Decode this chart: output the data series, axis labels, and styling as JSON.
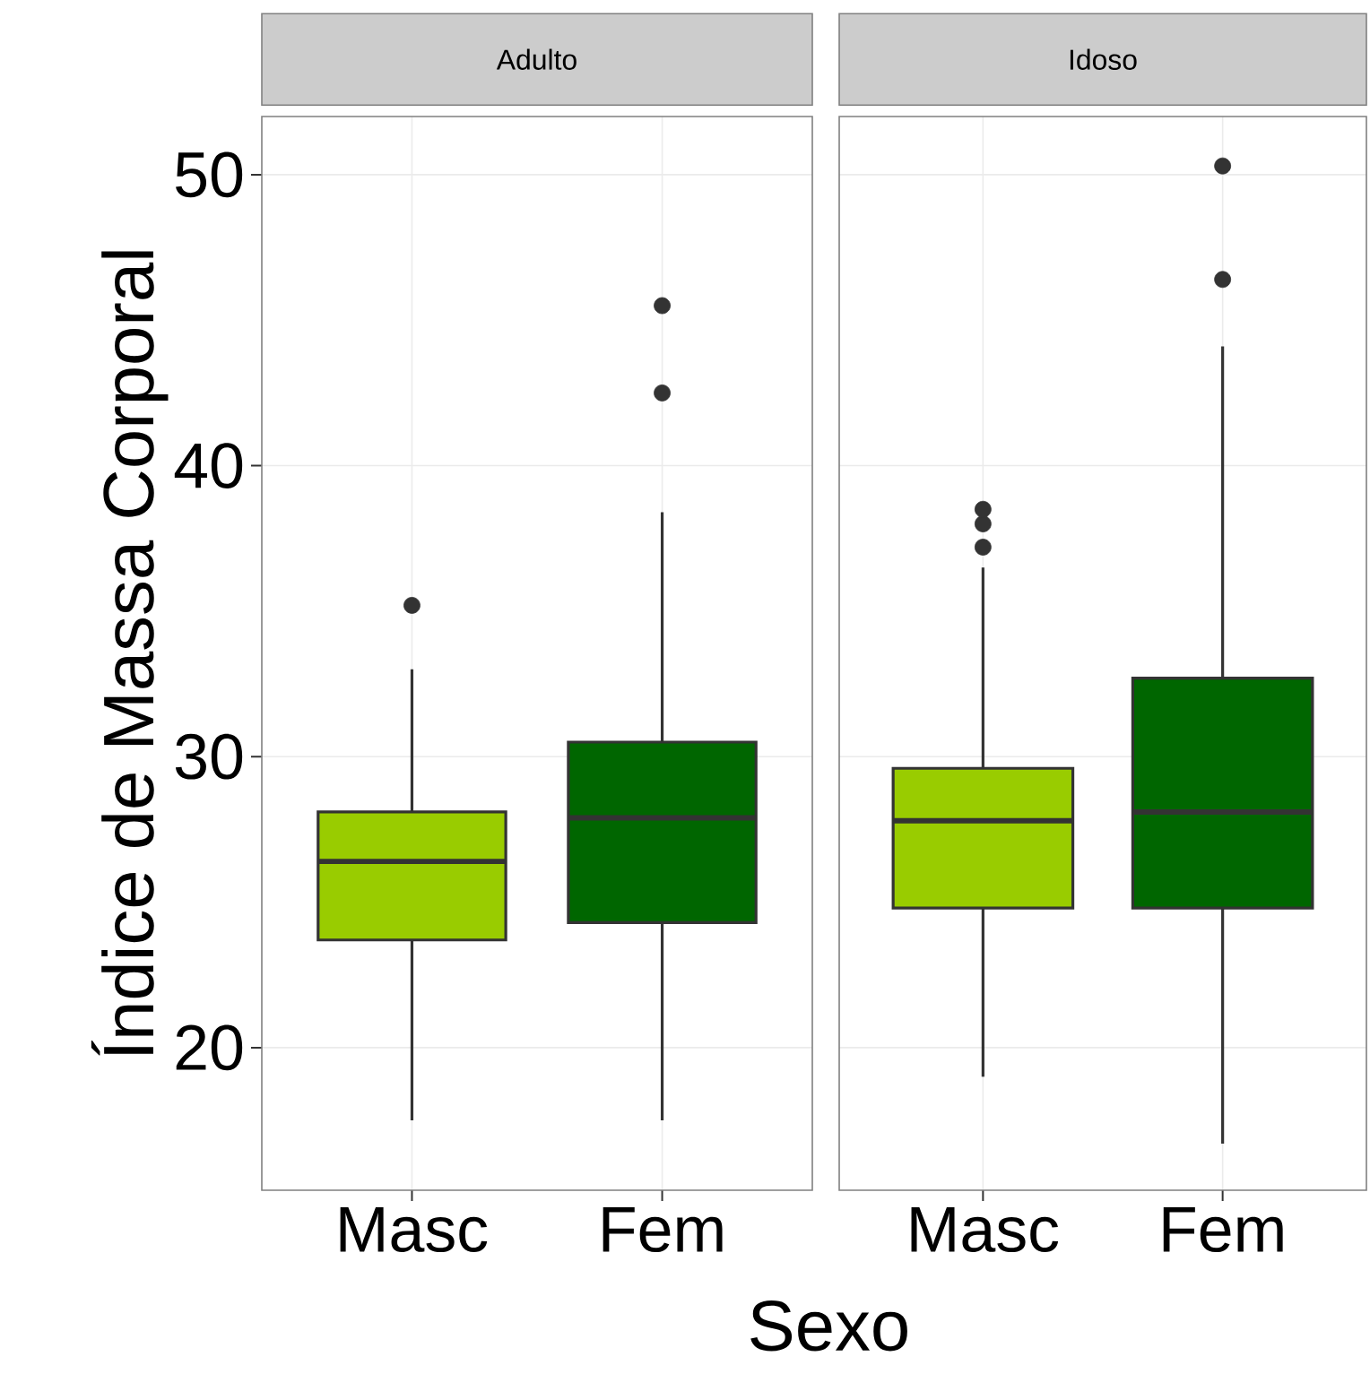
{
  "chart_data": [
    {
      "type": "box",
      "title": "Adulto",
      "ylabel": "Índice de Massa Corporal",
      "xlabel": "Sexo",
      "categories": [
        "Masc",
        "Fem"
      ],
      "colors": [
        "#99cc00",
        "#006600"
      ],
      "boxes": [
        {
          "low": 17.5,
          "q1": 23.7,
          "median": 26.4,
          "q3": 28.1,
          "high": 33.0,
          "outliers": [
            35.2
          ]
        },
        {
          "low": 17.5,
          "q1": 24.3,
          "median": 27.9,
          "q3": 30.5,
          "high": 38.4,
          "outliers": [
            42.5,
            45.5
          ]
        }
      ],
      "ylim": [
        15.1,
        52
      ],
      "yticks": [
        20,
        30,
        40,
        50
      ],
      "grid": true
    },
    {
      "type": "box",
      "title": "Idoso",
      "categories": [
        "Masc",
        "Fem"
      ],
      "colors": [
        "#99cc00",
        "#006600"
      ],
      "boxes": [
        {
          "low": 19.0,
          "q1": 24.8,
          "median": 27.8,
          "q3": 29.6,
          "high": 36.5,
          "outliers": [
            37.2,
            38.0,
            38.5
          ]
        },
        {
          "low": 16.7,
          "q1": 24.8,
          "median": 28.1,
          "q3": 32.7,
          "high": 44.1,
          "outliers": [
            46.4,
            50.3
          ]
        }
      ],
      "ylim": [
        15.1,
        52
      ],
      "yticks": [
        20,
        30,
        40,
        50
      ],
      "grid": true,
      "tick_labels": "x"
    }
  ]
}
